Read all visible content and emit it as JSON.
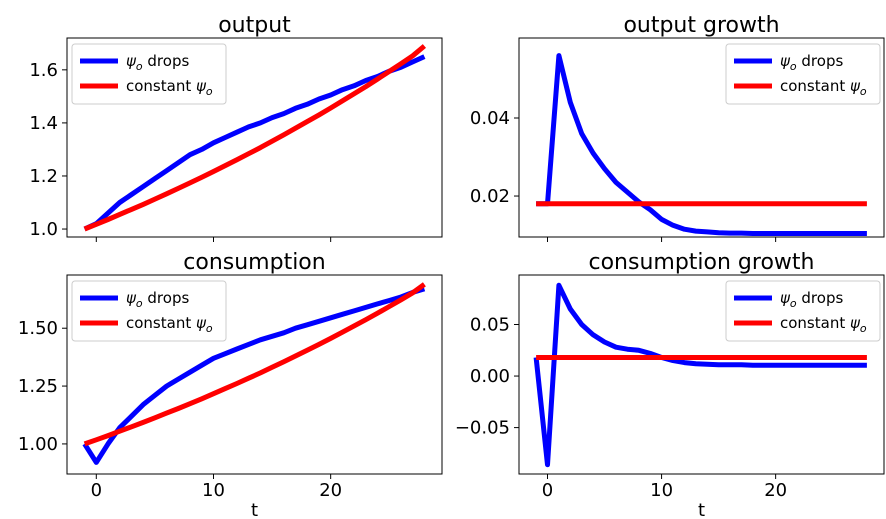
{
  "chart_data": [
    {
      "type": "line",
      "title": "output",
      "xlabel": "",
      "ylabel": "",
      "xlim": [
        -2.5,
        29.5
      ],
      "ylim": [
        0.97,
        1.72
      ],
      "xticks": [
        0,
        10,
        20
      ],
      "show_xtick_labels": false,
      "yticks": [
        1.0,
        1.2,
        1.4,
        1.6
      ],
      "ytick_labels": [
        "1.0",
        "1.2",
        "1.4",
        "1.6"
      ],
      "legend_position": "top-left",
      "x": [
        -1,
        0,
        1,
        2,
        3,
        4,
        5,
        6,
        7,
        8,
        9,
        10,
        11,
        12,
        13,
        14,
        15,
        16,
        17,
        18,
        19,
        20,
        21,
        22,
        23,
        24,
        25,
        26,
        27,
        28
      ],
      "series": [
        {
          "name": "$\\psi_o$ drops",
          "label_symbol": "ψ",
          "label_sub": "o",
          "label_suffix": " drops",
          "color": "#0000ff",
          "values": [
            1.0,
            1.02,
            1.06,
            1.1,
            1.13,
            1.16,
            1.19,
            1.22,
            1.25,
            1.28,
            1.3,
            1.325,
            1.345,
            1.365,
            1.385,
            1.4,
            1.42,
            1.435,
            1.455,
            1.47,
            1.49,
            1.505,
            1.525,
            1.54,
            1.56,
            1.575,
            1.595,
            1.61,
            1.63,
            1.65
          ]
        },
        {
          "name": "constant $\\psi_o$",
          "label_prefix": "constant ",
          "label_symbol": "ψ",
          "label_sub": "o",
          "color": "#ff0000",
          "values": [
            1.0,
            1.018,
            1.036,
            1.055,
            1.074,
            1.093,
            1.113,
            1.133,
            1.153,
            1.174,
            1.195,
            1.217,
            1.239,
            1.261,
            1.284,
            1.307,
            1.331,
            1.355,
            1.38,
            1.405,
            1.43,
            1.456,
            1.483,
            1.51,
            1.537,
            1.565,
            1.594,
            1.623,
            1.653,
            1.69
          ]
        }
      ]
    },
    {
      "type": "line",
      "title": "output growth",
      "xlabel": "",
      "ylabel": "",
      "xlim": [
        -2.5,
        29.5
      ],
      "ylim": [
        0.0095,
        0.0605
      ],
      "xticks": [
        0,
        10,
        20
      ],
      "show_xtick_labels": false,
      "yticks": [
        0.02,
        0.04
      ],
      "ytick_labels": [
        "0.02",
        "0.04"
      ],
      "legend_position": "top-right",
      "x": [
        -1,
        0,
        1,
        2,
        3,
        4,
        5,
        6,
        7,
        8,
        9,
        10,
        11,
        12,
        13,
        14,
        15,
        16,
        17,
        18,
        19,
        20,
        21,
        22,
        23,
        24,
        25,
        26,
        27,
        28
      ],
      "series": [
        {
          "name": "$\\psi_o$ drops",
          "label_symbol": "ψ",
          "label_sub": "o",
          "label_suffix": " drops",
          "color": "#0000ff",
          "values": [
            0.018,
            0.018,
            0.056,
            0.044,
            0.036,
            0.031,
            0.027,
            0.0235,
            0.021,
            0.0185,
            0.0165,
            0.014,
            0.0125,
            0.0115,
            0.011,
            0.0108,
            0.0106,
            0.0105,
            0.0105,
            0.0104,
            0.0104,
            0.0104,
            0.0104,
            0.0104,
            0.0104,
            0.0104,
            0.0104,
            0.0104,
            0.0104,
            0.0104
          ]
        },
        {
          "name": "constant $\\psi_o$",
          "label_prefix": "constant ",
          "label_symbol": "ψ",
          "label_sub": "o",
          "color": "#ff0000",
          "values": [
            0.018,
            0.018,
            0.018,
            0.018,
            0.018,
            0.018,
            0.018,
            0.018,
            0.018,
            0.018,
            0.018,
            0.018,
            0.018,
            0.018,
            0.018,
            0.018,
            0.018,
            0.018,
            0.018,
            0.018,
            0.018,
            0.018,
            0.018,
            0.018,
            0.018,
            0.018,
            0.018,
            0.018,
            0.018,
            0.018
          ]
        }
      ]
    },
    {
      "type": "line",
      "title": "consumption",
      "xlabel": "t",
      "ylabel": "",
      "xlim": [
        -2.5,
        29.5
      ],
      "ylim": [
        0.87,
        1.73
      ],
      "xticks": [
        0,
        10,
        20
      ],
      "show_xtick_labels": true,
      "xtick_labels": [
        "0",
        "10",
        "20"
      ],
      "yticks": [
        1.0,
        1.25,
        1.5
      ],
      "ytick_labels": [
        "1.00",
        "1.25",
        "1.50"
      ],
      "legend_position": "top-left",
      "x": [
        -1,
        0,
        1,
        2,
        3,
        4,
        5,
        6,
        7,
        8,
        9,
        10,
        11,
        12,
        13,
        14,
        15,
        16,
        17,
        18,
        19,
        20,
        21,
        22,
        23,
        24,
        25,
        26,
        27,
        28
      ],
      "series": [
        {
          "name": "$\\psi_o$ drops",
          "label_symbol": "ψ",
          "label_sub": "o",
          "label_suffix": " drops",
          "color": "#0000ff",
          "values": [
            1.0,
            0.92,
            1.0,
            1.07,
            1.12,
            1.17,
            1.21,
            1.25,
            1.28,
            1.31,
            1.34,
            1.37,
            1.39,
            1.41,
            1.43,
            1.45,
            1.465,
            1.48,
            1.5,
            1.515,
            1.53,
            1.545,
            1.56,
            1.575,
            1.59,
            1.605,
            1.62,
            1.635,
            1.655,
            1.67
          ]
        },
        {
          "name": "constant $\\psi_o$",
          "label_prefix": "constant ",
          "label_symbol": "ψ",
          "label_sub": "o",
          "color": "#ff0000",
          "values": [
            1.0,
            1.018,
            1.036,
            1.055,
            1.074,
            1.093,
            1.113,
            1.133,
            1.153,
            1.174,
            1.195,
            1.217,
            1.239,
            1.261,
            1.284,
            1.307,
            1.331,
            1.355,
            1.38,
            1.405,
            1.43,
            1.456,
            1.483,
            1.51,
            1.537,
            1.565,
            1.594,
            1.623,
            1.653,
            1.69
          ]
        }
      ]
    },
    {
      "type": "line",
      "title": "consumption growth",
      "xlabel": "t",
      "ylabel": "",
      "xlim": [
        -2.5,
        29.5
      ],
      "ylim": [
        -0.095,
        0.098
      ],
      "xticks": [
        0,
        10,
        20
      ],
      "show_xtick_labels": true,
      "xtick_labels": [
        "0",
        "10",
        "20"
      ],
      "yticks": [
        -0.05,
        0.0,
        0.05
      ],
      "ytick_labels": [
        "−0.05",
        "0.00",
        "0.05"
      ],
      "legend_position": "top-right",
      "x": [
        -1,
        0,
        1,
        2,
        3,
        4,
        5,
        6,
        7,
        8,
        9,
        10,
        11,
        12,
        13,
        14,
        15,
        16,
        17,
        18,
        19,
        20,
        21,
        22,
        23,
        24,
        25,
        26,
        27,
        28
      ],
      "series": [
        {
          "name": "$\\psi_o$ drops",
          "label_symbol": "ψ",
          "label_sub": "o",
          "label_suffix": " drops",
          "color": "#0000ff",
          "values": [
            0.018,
            -0.086,
            0.088,
            0.065,
            0.05,
            0.04,
            0.033,
            0.028,
            0.026,
            0.025,
            0.022,
            0.018,
            0.015,
            0.013,
            0.012,
            0.0115,
            0.011,
            0.011,
            0.011,
            0.0105,
            0.0105,
            0.0105,
            0.0105,
            0.0105,
            0.0105,
            0.0105,
            0.0105,
            0.0105,
            0.0105,
            0.0105
          ]
        },
        {
          "name": "constant $\\psi_o$",
          "label_prefix": "constant ",
          "label_symbol": "ψ",
          "label_sub": "o",
          "color": "#ff0000",
          "values": [
            0.018,
            0.018,
            0.018,
            0.018,
            0.018,
            0.018,
            0.018,
            0.018,
            0.018,
            0.018,
            0.018,
            0.018,
            0.018,
            0.018,
            0.018,
            0.018,
            0.018,
            0.018,
            0.018,
            0.018,
            0.018,
            0.018,
            0.018,
            0.018,
            0.018,
            0.018,
            0.018,
            0.018,
            0.018,
            0.018
          ]
        }
      ]
    }
  ]
}
